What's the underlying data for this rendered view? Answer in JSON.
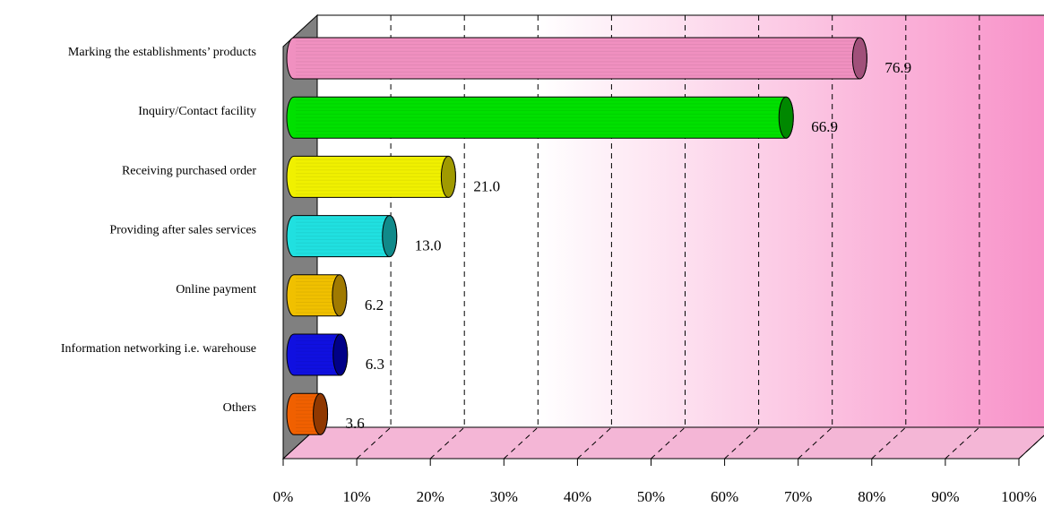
{
  "chart_data": {
    "type": "bar",
    "orientation": "horizontal",
    "three_d": true,
    "categories": [
      "Marking the establishments’ products",
      "Inquiry/Contact facility",
      "Receiving purchased order",
      "Providing after sales services",
      "Online payment",
      "Information networking i.e. warehouse",
      "Others"
    ],
    "values": [
      76.9,
      66.9,
      21.0,
      13.0,
      6.2,
      6.3,
      3.6
    ],
    "value_labels": [
      "76.9",
      "66.9",
      "21.0",
      "13.0",
      "6.2",
      "6.3",
      "3.6"
    ],
    "bar_colors": [
      "#f090c0",
      "#00e000",
      "#f0f000",
      "#20e0e0",
      "#f0c000",
      "#1010e0",
      "#f06000"
    ],
    "bar_end_colors": [
      "#a0507a",
      "#008800",
      "#a09a00",
      "#108a8a",
      "#a07a00",
      "#000088",
      "#903800"
    ],
    "xlim": [
      0,
      100
    ],
    "x_ticks": [
      0,
      10,
      20,
      30,
      40,
      50,
      60,
      70,
      80,
      90,
      100
    ],
    "x_tick_labels": [
      "0%",
      "10%",
      "20%",
      "30%",
      "40%",
      "50%",
      "60%",
      "70%",
      "80%",
      "90%",
      "100%"
    ],
    "gridlines": "dashed-vertical",
    "background_gradient": [
      "#ffffff",
      "#f890c8"
    ],
    "side_wall_color": "#808080",
    "title": "",
    "xlabel": "",
    "ylabel": ""
  }
}
